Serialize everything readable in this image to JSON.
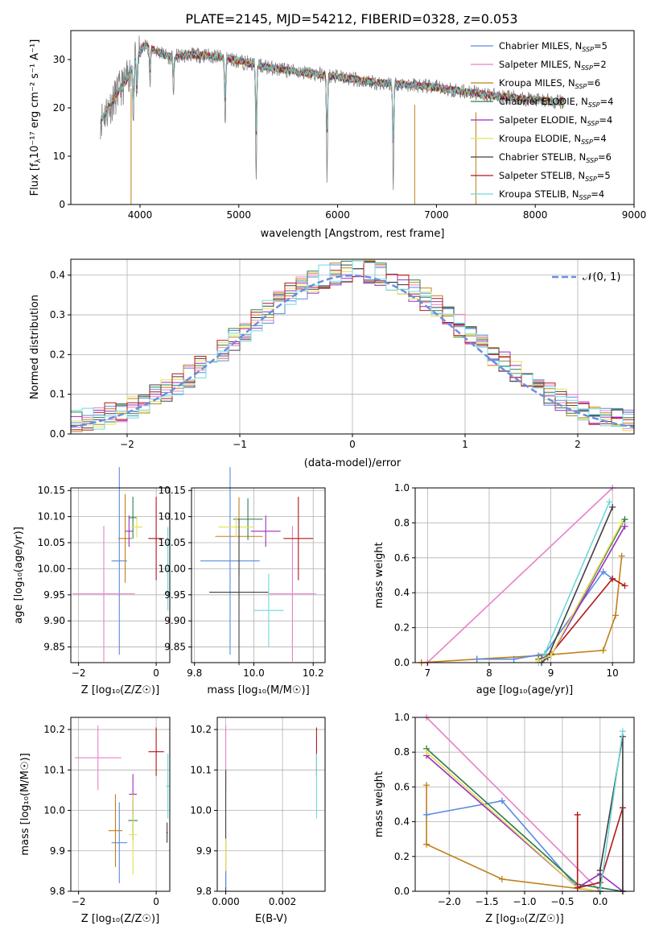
{
  "figure_title": "PLATE=2145, MJD=54212, FIBERID=0328, z=0.053",
  "colors": {
    "Chabrier MILES": "#5b8ae0",
    "Salpeter MILES": "#e882c6",
    "Kroupa MILES": "#c08018",
    "Chabrier ELODIE": "#2f7d4f",
    "Salpeter ELODIE": "#9a2fbe",
    "Kroupa ELODIE": "#e6e055",
    "Chabrier STELIB": "#404040",
    "Salpeter STELIB": "#b01818",
    "Kroupa STELIB": "#6fd8dc",
    "data_gray": "#7f7f7f",
    "orange": "#e0761a",
    "gaussian": "#6a8fe0"
  },
  "chart_data": [
    {
      "id": "spectrum",
      "type": "line",
      "xlabel": "wavelength [Angstrom, rest frame]",
      "ylabel_pre": "Flux [f",
      "ylabel_sub": "λ",
      "ylabel_post": "10⁻¹⁷ erg cm⁻² s⁻¹ A⁻¹]",
      "xlim": [
        3300,
        9000
      ],
      "ylim": [
        0,
        36
      ],
      "xticks": [
        4000,
        5000,
        6000,
        7000,
        8000,
        9000
      ],
      "yticks": [
        0,
        10,
        20,
        30
      ],
      "spectrum_knots": [
        [
          3600,
          17.5
        ],
        [
          3700,
          20.5
        ],
        [
          3800,
          24.0
        ],
        [
          3850,
          25.0
        ],
        [
          3950,
          30.0
        ],
        [
          4050,
          33.0
        ],
        [
          4150,
          32.0
        ],
        [
          4300,
          30.5
        ],
        [
          4500,
          31.0
        ],
        [
          4700,
          30.8
        ],
        [
          4900,
          30.2
        ],
        [
          5000,
          29.7
        ],
        [
          5200,
          28.8
        ],
        [
          5400,
          28.0
        ],
        [
          5600,
          27.5
        ],
        [
          5800,
          26.9
        ],
        [
          6000,
          26.4
        ],
        [
          6200,
          25.8
        ],
        [
          6400,
          25.2
        ],
        [
          6600,
          25.0
        ],
        [
          6800,
          24.6
        ],
        [
          7000,
          24.2
        ],
        [
          7200,
          23.6
        ],
        [
          7400,
          23.1
        ],
        [
          7600,
          22.5
        ],
        [
          7800,
          22.1
        ],
        [
          8000,
          21.6
        ],
        [
          8200,
          21.3
        ],
        [
          8300,
          21.1
        ]
      ],
      "absorption_lines": [
        [
          3934,
          13.0
        ],
        [
          3969,
          10.0
        ],
        [
          4102,
          8.0
        ],
        [
          4340,
          7.5
        ],
        [
          4862,
          14.5
        ],
        [
          5176,
          23.5
        ],
        [
          5893,
          21.5
        ],
        [
          6563,
          22.0
        ]
      ],
      "vertical_spikes": [
        3910,
        6780,
        7400
      ],
      "legend": [
        {
          "label": "Chabrier MILES",
          "n": "5"
        },
        {
          "label": "Salpeter MILES",
          "n": "2"
        },
        {
          "label": "Kroupa MILES",
          "n": "6"
        },
        {
          "label": "Chabrier ELODIE",
          "n": "4"
        },
        {
          "label": "Salpeter ELODIE",
          "n": "4"
        },
        {
          "label": "Kroupa ELODIE",
          "n": "4"
        },
        {
          "label": "Chabrier STELIB",
          "n": "6"
        },
        {
          "label": "Salpeter STELIB",
          "n": "5"
        },
        {
          "label": "Kroupa STELIB",
          "n": "4"
        }
      ],
      "legend_nssp": "N",
      "legend_nssp_sub": "SSP",
      "legend_placement": "right"
    },
    {
      "id": "residuals",
      "type": "histogram",
      "xlabel": "(data-model)/error",
      "ylabel": "Normed distribution",
      "xlim": [
        -2.5,
        2.5
      ],
      "ylim": [
        0,
        0.44
      ],
      "xticks": [
        -2,
        -1,
        0,
        1,
        2
      ],
      "yticks": [
        0.0,
        0.1,
        0.2,
        0.3,
        0.4
      ],
      "gaussian_label": "𝒩(0, 1)",
      "grid": true,
      "legend_placement": "top-right"
    },
    {
      "id": "age_vs_Z",
      "type": "scatter",
      "xlabel": "Z [log₁₀(Z/Z☉)]",
      "ylabel": "age  [log₁₀(age/yr)]",
      "xlim": [
        -2.2,
        0.35
      ],
      "ylim": [
        9.82,
        10.155
      ],
      "xticks": [
        -2,
        0
      ],
      "yticks": [
        9.85,
        9.9,
        9.95,
        10.0,
        10.05,
        10.1,
        10.15
      ],
      "points": [
        {
          "model": "Chabrier MILES",
          "x": -0.95,
          "xerr": 0.2,
          "y": 10.015,
          "yerr": 0.18
        },
        {
          "model": "Salpeter MILES",
          "x": -1.35,
          "xerr": 0.8,
          "y": 9.952,
          "yerr": 0.13
        },
        {
          "model": "Kroupa MILES",
          "x": -0.8,
          "xerr": 0.18,
          "y": 10.058,
          "yerr": 0.085
        },
        {
          "model": "Chabrier ELODIE",
          "x": -0.6,
          "xerr": 0.1,
          "y": 10.098,
          "yerr": 0.04
        },
        {
          "model": "Salpeter ELODIE",
          "x": -0.7,
          "xerr": 0.1,
          "y": 10.072,
          "yerr": 0.03
        },
        {
          "model": "Kroupa ELODIE",
          "x": -0.5,
          "xerr": 0.15,
          "y": 10.08,
          "yerr": 0.02
        },
        {
          "model": "Chabrier STELIB",
          "x": 0.3,
          "xerr": 0.05,
          "y": 9.954,
          "yerr": 0.002
        },
        {
          "model": "Salpeter STELIB",
          "x": 0.0,
          "xerr": 0.2,
          "y": 10.058,
          "yerr": 0.08
        },
        {
          "model": "Kroupa STELIB",
          "x": 0.3,
          "xerr": 0.05,
          "y": 10.0,
          "yerr": 0.08
        }
      ]
    },
    {
      "id": "age_vs_mass",
      "type": "scatter",
      "xlabel": "mass [log₁₀(M/M☉)]",
      "ylabel": "",
      "xlim": [
        9.79,
        10.24
      ],
      "ylim": [
        9.82,
        10.155
      ],
      "xticks": [
        9.8,
        10.0,
        10.2
      ],
      "yticks": [
        9.85,
        9.9,
        9.95,
        10.0,
        10.05,
        10.1,
        10.15
      ],
      "points": [
        {
          "model": "Chabrier MILES",
          "x": 9.92,
          "xerr": 0.1,
          "y": 10.015,
          "yerr": 0.18
        },
        {
          "model": "Salpeter MILES",
          "x": 10.13,
          "xerr": 0.08,
          "y": 9.952,
          "yerr": 0.13
        },
        {
          "model": "Kroupa MILES",
          "x": 9.95,
          "xerr": 0.08,
          "y": 10.062,
          "yerr": 0.075
        },
        {
          "model": "Chabrier ELODIE",
          "x": 9.98,
          "xerr": 0.05,
          "y": 10.095,
          "yerr": 0.04
        },
        {
          "model": "Salpeter ELODIE",
          "x": 10.04,
          "xerr": 0.05,
          "y": 10.072,
          "yerr": 0.03
        },
        {
          "model": "Kroupa ELODIE",
          "x": 9.94,
          "xerr": 0.06,
          "y": 10.08,
          "yerr": 0.02
        },
        {
          "model": "Chabrier STELIB",
          "x": 9.95,
          "xerr": 0.1,
          "y": 9.955,
          "yerr": 0.14
        },
        {
          "model": "Salpeter STELIB",
          "x": 10.15,
          "xerr": 0.05,
          "y": 10.058,
          "yerr": 0.08
        },
        {
          "model": "Kroupa STELIB",
          "x": 10.05,
          "xerr": 0.05,
          "y": 9.92,
          "yerr": 0.07
        }
      ]
    },
    {
      "id": "mass_weight_vs_age",
      "type": "line",
      "xlabel": "age  [log₁₀(age/yr)]",
      "ylabel": "mass weight",
      "xlim": [
        6.8,
        10.35
      ],
      "ylim": [
        0,
        1.0
      ],
      "xticks": [
        7,
        8,
        9,
        10
      ],
      "yticks": [
        0.0,
        0.2,
        0.4,
        0.6,
        0.8,
        1.0
      ],
      "series": [
        {
          "model": "Salpeter MILES",
          "x": [
            6.9,
            7.0,
            10.0
          ],
          "y": [
            0.0,
            0.0,
            1.0
          ]
        },
        {
          "model": "Kroupa MILES",
          "x": [
            6.9,
            7.8,
            8.8,
            9.85,
            10.05,
            10.15
          ],
          "y": [
            0.0,
            0.02,
            0.04,
            0.07,
            0.27,
            0.61
          ]
        },
        {
          "model": "Chabrier MILES",
          "x": [
            7.8,
            8.4,
            8.9,
            9.85,
            10.0
          ],
          "y": [
            0.02,
            0.02,
            0.05,
            0.52,
            0.48
          ]
        },
        {
          "model": "Salpeter STELIB",
          "x": [
            8.85,
            9.0,
            10.0,
            10.2
          ],
          "y": [
            0.02,
            0.05,
            0.48,
            0.44
          ]
        },
        {
          "model": "Kroupa STELIB",
          "x": [
            8.8,
            8.9,
            9.95
          ],
          "y": [
            0.0,
            0.05,
            0.92
          ]
        },
        {
          "model": "Chabrier STELIB",
          "x": [
            8.85,
            8.95,
            10.0
          ],
          "y": [
            0.0,
            0.03,
            0.89
          ]
        },
        {
          "model": "Chabrier ELODIE",
          "x": [
            8.8,
            9.0,
            10.2
          ],
          "y": [
            0.02,
            0.04,
            0.82
          ]
        },
        {
          "model": "Salpeter ELODIE",
          "x": [
            8.85,
            9.0,
            10.2
          ],
          "y": [
            0.02,
            0.04,
            0.78
          ]
        },
        {
          "model": "Kroupa ELODIE",
          "x": [
            8.8,
            9.0,
            10.15
          ],
          "y": [
            0.01,
            0.04,
            0.8
          ]
        }
      ]
    },
    {
      "id": "mass_vs_Z",
      "type": "scatter",
      "xlabel": "Z [log₁₀(Z/Z☉)]",
      "ylabel": "mass [log₁₀(M/M☉)]",
      "xlim": [
        -2.2,
        0.35
      ],
      "ylim": [
        9.8,
        10.23
      ],
      "xticks": [
        -2,
        0
      ],
      "yticks": [
        9.8,
        9.9,
        10.0,
        10.1,
        10.2
      ],
      "points": [
        {
          "model": "Chabrier MILES",
          "x": -0.95,
          "xerr": 0.2,
          "y": 9.92,
          "yerr": 0.1
        },
        {
          "model": "Salpeter MILES",
          "x": -1.5,
          "xerr": 0.6,
          "y": 10.13,
          "yerr": 0.08
        },
        {
          "model": "Kroupa MILES",
          "x": -1.05,
          "xerr": 0.18,
          "y": 9.95,
          "yerr": 0.09
        },
        {
          "model": "Chabrier ELODIE",
          "x": -0.6,
          "xerr": 0.12,
          "y": 9.975,
          "yerr": 0.05
        },
        {
          "model": "Salpeter ELODIE",
          "x": -0.6,
          "xerr": 0.1,
          "y": 10.04,
          "yerr": 0.05
        },
        {
          "model": "Kroupa ELODIE",
          "x": -0.6,
          "xerr": 0.1,
          "y": 9.94,
          "yerr": 0.1
        },
        {
          "model": "Chabrier STELIB",
          "x": 0.28,
          "xerr": 0.02,
          "y": 9.945,
          "yerr": 0.025
        },
        {
          "model": "Salpeter STELIB",
          "x": 0.0,
          "xerr": 0.2,
          "y": 10.145,
          "yerr": 0.06
        },
        {
          "model": "Kroupa STELIB",
          "x": 0.3,
          "xerr": 0.05,
          "y": 10.06,
          "yerr": 0.08
        }
      ]
    },
    {
      "id": "mass_vs_ebv",
      "type": "scatter",
      "xlabel": "E(B-V)",
      "ylabel": "",
      "xlim": [
        -0.0003,
        0.0035
      ],
      "ylim": [
        9.8,
        10.23
      ],
      "xticks": [
        0.0,
        0.002
      ],
      "xticklabels": [
        "0.000",
        "0.002"
      ],
      "yticks": [
        9.8,
        9.9,
        10.0,
        10.1,
        10.2
      ],
      "points": [
        {
          "model": "Salpeter MILES",
          "x": 0.0,
          "y": 10.13,
          "yerr": 0.08
        },
        {
          "model": "Chabrier STELIB",
          "x": 0.0,
          "y": 9.95,
          "yerr": 0.15
        },
        {
          "model": "Kroupa ELODIE",
          "x": 0.0,
          "y": 9.88,
          "yerr": 0.05
        },
        {
          "model": "Chabrier MILES",
          "x": 0.0,
          "y": 9.83,
          "yerr": 0.02
        },
        {
          "model": "Salpeter STELIB",
          "x": 0.0032,
          "y": 10.145,
          "yerr": 0.06
        },
        {
          "model": "Kroupa STELIB",
          "x": 0.0032,
          "y": 10.06,
          "yerr": 0.08
        }
      ]
    },
    {
      "id": "mass_weight_vs_Z",
      "type": "line",
      "xlabel": "Z [log₁₀(Z/Z☉)]",
      "ylabel": "mass weight",
      "xlim": [
        -2.45,
        0.45
      ],
      "ylim": [
        0,
        1.0
      ],
      "xticks": [
        -2.0,
        -1.5,
        -1.0,
        -0.5,
        0.0
      ],
      "xticklabels": [
        "−2.0",
        "−1.5",
        "−1.0",
        "−0.5",
        "0.0"
      ],
      "yticks": [
        0.0,
        0.2,
        0.4,
        0.6,
        0.8,
        1.0
      ],
      "series": [
        {
          "model": "Salpeter MILES",
          "x": [
            -2.3,
            0.0
          ],
          "y": [
            1.0,
            0.0
          ]
        },
        {
          "model": "Kroupa MILES",
          "x": [
            -2.3,
            -2.3,
            -1.3,
            0.0
          ],
          "y": [
            0.61,
            0.27,
            0.07,
            0.0
          ]
        },
        {
          "model": "Chabrier MILES",
          "x": [
            -2.3,
            -1.3,
            -0.3,
            0.0
          ],
          "y": [
            0.44,
            0.52,
            0.02,
            0.0
          ]
        },
        {
          "model": "Chabrier ELODIE",
          "x": [
            -2.3,
            -0.3,
            0.0,
            0.3
          ],
          "y": [
            0.82,
            0.04,
            0.02,
            0.0
          ]
        },
        {
          "model": "Salpeter ELODIE",
          "x": [
            -2.3,
            -0.3,
            0.0,
            0.3
          ],
          "y": [
            0.78,
            0.02,
            0.1,
            0.0
          ]
        },
        {
          "model": "Kroupa ELODIE",
          "x": [
            -2.3,
            -0.3,
            0.0
          ],
          "y": [
            0.8,
            0.02,
            0.0
          ]
        },
        {
          "model": "Salpeter STELIB",
          "x": [
            -0.3,
            -0.3,
            0.0,
            0.3,
            0.3
          ],
          "y": [
            0.44,
            0.02,
            0.05,
            0.48,
            0.0
          ]
        },
        {
          "model": "Chabrier STELIB",
          "x": [
            0.0,
            0.0,
            0.3,
            0.3
          ],
          "y": [
            0.0,
            0.12,
            0.89,
            0.0
          ]
        },
        {
          "model": "Kroupa STELIB",
          "x": [
            0.0,
            0.3
          ],
          "y": [
            0.0,
            0.92
          ]
        }
      ]
    }
  ]
}
